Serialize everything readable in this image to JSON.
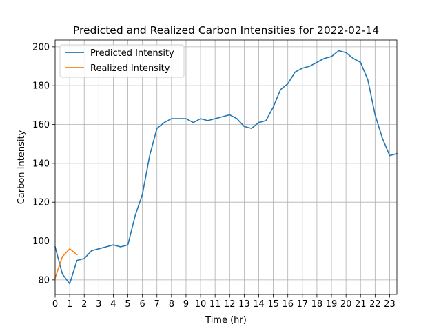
{
  "chart_data": {
    "type": "line",
    "title": "Predicted and Realized Carbon Intensities for 2022-02-14",
    "xlabel": "Time (hr)",
    "ylabel": "Carbon Intensity",
    "xlim": [
      0,
      23.5
    ],
    "ylim": [
      72.5,
      203.5
    ],
    "xticks": [
      0,
      1,
      2,
      3,
      4,
      5,
      6,
      7,
      8,
      9,
      10,
      11,
      12,
      13,
      14,
      15,
      16,
      17,
      18,
      19,
      20,
      21,
      22,
      23
    ],
    "yticks": [
      80,
      100,
      120,
      140,
      160,
      180,
      200
    ],
    "grid": true,
    "legend_position": "upper-left",
    "series": [
      {
        "name": "Predicted Intensity",
        "color": "#1f77b4",
        "x": [
          0,
          0.5,
          1,
          1.5,
          2,
          2.5,
          3,
          3.5,
          4,
          4.5,
          5,
          5.5,
          6,
          6.5,
          7,
          7.5,
          8,
          8.5,
          9,
          9.5,
          10,
          10.5,
          11,
          11.5,
          12,
          12.5,
          13,
          13.5,
          14,
          14.5,
          15,
          15.5,
          16,
          16.5,
          17,
          17.5,
          18,
          18.5,
          19,
          19.5,
          20,
          20.5,
          21,
          21.5,
          22,
          22.5,
          23,
          23.5
        ],
        "y": [
          97,
          83,
          78,
          90,
          91,
          95,
          96,
          97,
          98,
          97,
          98,
          113,
          124,
          144,
          158,
          161,
          163,
          163,
          163,
          161,
          163,
          162,
          163,
          164,
          165,
          163,
          159,
          158,
          161,
          162,
          169,
          178,
          181,
          187,
          189,
          190,
          192,
          194,
          195,
          198,
          197,
          194,
          192,
          183,
          165,
          153,
          144,
          145
        ]
      },
      {
        "name": "Realized Intensity",
        "color": "#ff7f0e",
        "x": [
          0,
          0.5,
          1,
          1.5
        ],
        "y": [
          81,
          92,
          96,
          93
        ]
      }
    ]
  }
}
